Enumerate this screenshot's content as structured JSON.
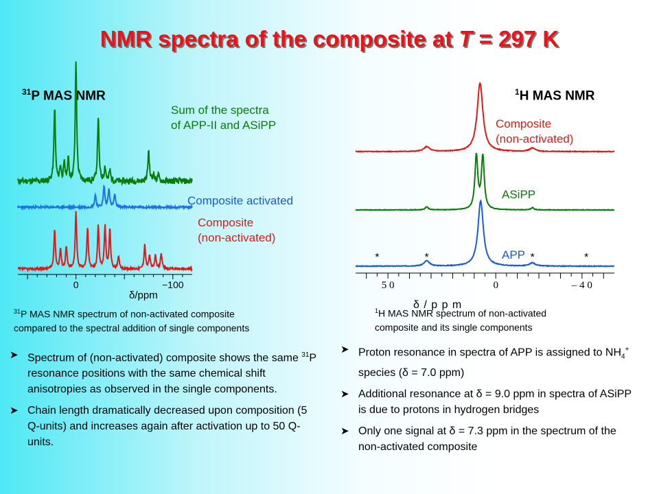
{
  "title": {
    "main": "NMR spectra of the composite at ",
    "var": "T",
    "rest": " = 297 K"
  },
  "colors": {
    "red": "#e01818",
    "green": "#0a7a0a",
    "blue": "#1a5ad8",
    "bright_blue": "#1f6fe8"
  },
  "chart_data": [
    {
      "type": "line",
      "title": "31P MAS NMR",
      "title_nucleus": "31",
      "title_text": "P MAS NMR",
      "xlabel": "δ/ppm",
      "xlim": [
        60,
        -120
      ],
      "x_ticks": [
        {
          "value": 0,
          "label": "0"
        },
        {
          "value": -100,
          "label": "−100"
        }
      ],
      "series": [
        {
          "name": "Sum of the spectra of APP-II and ASiPP",
          "color": "#0a7a0a",
          "peaks": [
            {
              "x": 22,
              "y": 0.62
            },
            {
              "x": 16,
              "y": 0.12
            },
            {
              "x": 12,
              "y": 0.14
            },
            {
              "x": 8,
              "y": 0.18
            },
            {
              "x": 0,
              "y": 1.0
            },
            {
              "x": -23,
              "y": 0.54
            },
            {
              "x": -30,
              "y": 0.12
            },
            {
              "x": -35,
              "y": 0.09
            },
            {
              "x": -75,
              "y": 0.26
            },
            {
              "x": -80,
              "y": 0.06
            },
            {
              "x": -85,
              "y": 0.05
            }
          ]
        },
        {
          "name": "Composite activated",
          "color": "#1f6fe8",
          "peaks": [
            {
              "x": -20,
              "y": 0.33
            },
            {
              "x": -29,
              "y": 0.56
            },
            {
              "x": -34,
              "y": 0.5
            },
            {
              "x": -40,
              "y": 0.34
            }
          ]
        },
        {
          "name": "Composite (non-activated)",
          "color": "#e01818",
          "peaks": [
            {
              "x": 22,
              "y": 0.68
            },
            {
              "x": 16,
              "y": 0.34
            },
            {
              "x": 10,
              "y": 0.38
            },
            {
              "x": 0,
              "y": 1.0
            },
            {
              "x": -12,
              "y": 0.72
            },
            {
              "x": -23,
              "y": 0.75
            },
            {
              "x": -30,
              "y": 0.73
            },
            {
              "x": -35,
              "y": 0.68
            },
            {
              "x": -44,
              "y": 0.2
            },
            {
              "x": -71,
              "y": 0.42
            },
            {
              "x": -76,
              "y": 0.23
            },
            {
              "x": -82,
              "y": 0.22
            },
            {
              "x": -88,
              "y": 0.28
            }
          ]
        }
      ],
      "labels": {
        "sum_line1": "Sum of  the spectra",
        "sum_line2": "of APP-II and ASiPP",
        "activated": "Composite activated",
        "nonact_line1": "Composite",
        "nonact_line2": "(non-activated)"
      }
    },
    {
      "type": "line",
      "title": "1H MAS NMR",
      "title_nucleus": "1",
      "title_text": "H MAS NMR",
      "xlabel": "δ / p p m",
      "xlim": [
        65,
        -55
      ],
      "x_ticks": [
        {
          "value": 50,
          "label": "5 0"
        },
        {
          "value": 0,
          "label": "0"
        },
        {
          "value": -40,
          "label": "– 4 0"
        }
      ],
      "series": [
        {
          "name": "Composite (non-activated)",
          "color": "#e01818",
          "peaks": [
            {
              "x": 7.3,
              "y": 1.0
            },
            {
              "x": 32,
              "y": 0.07
            },
            {
              "x": -17,
              "y": 0.05
            }
          ]
        },
        {
          "name": "ASiPP",
          "color": "#0a7a0a",
          "peaks": [
            {
              "x": 9.0,
              "y": 1.0
            },
            {
              "x": 6.0,
              "y": 0.98
            },
            {
              "x": 32,
              "y": 0.06
            },
            {
              "x": -17,
              "y": 0.04
            }
          ]
        },
        {
          "name": "APP",
          "color": "#1a5ad8",
          "peaks": [
            {
              "x": 7.0,
              "y": 1.0
            },
            {
              "x": 32,
              "y": 0.08
            },
            {
              "x": -17,
              "y": 0.05
            }
          ]
        }
      ],
      "spinning_sidebands": [
        55,
        32,
        -17,
        -42
      ],
      "sideband_mark": "*",
      "labels": {
        "composite_line1": "Composite",
        "composite_line2": "(non-activated)",
        "asipp": "ASiPP",
        "app": "APP"
      }
    }
  ],
  "captions": {
    "p31_nucleus": "31",
    "p31_line1": "P MAS NMR spectrum of non-activated composite",
    "p31_line2": "compared to the spectral addition of single components",
    "h1_nucleus": "1",
    "h1_line1": "H MAS NMR spectrum of non-activated",
    "h1_line2": "composite and its single components"
  },
  "bullets_left": [
    {
      "pre": "Spectrum of (non-activated) composite shows the same ",
      "sup": "31",
      "post": "P resonance positions with the same chemical shift anisotropies as observed in the single components."
    },
    {
      "text": "Chain length dramatically decreased upon composition (5 Q-units) and increases again after activation up to 50 Q-units."
    }
  ],
  "bullets_right": [
    {
      "pre": "Proton resonance in spectra of APP is assigned to NH",
      "sub": "4",
      "sup": "+",
      "mid": " species (",
      "delta": "δ",
      "post": "  = 7.0 ppm)"
    },
    {
      "pre": "Additional resonance at ",
      "delta": "δ",
      "post": " = 9.0 ppm in spectra of ASiPP is due to protons in hydrogen bridges"
    },
    {
      "pre": "Only one signal at ",
      "delta": "δ",
      "post": " = 7.3 ppm in the spectrum of  the non-activated composite"
    }
  ],
  "bullet_icon": "arrowhead-bullet-icon"
}
